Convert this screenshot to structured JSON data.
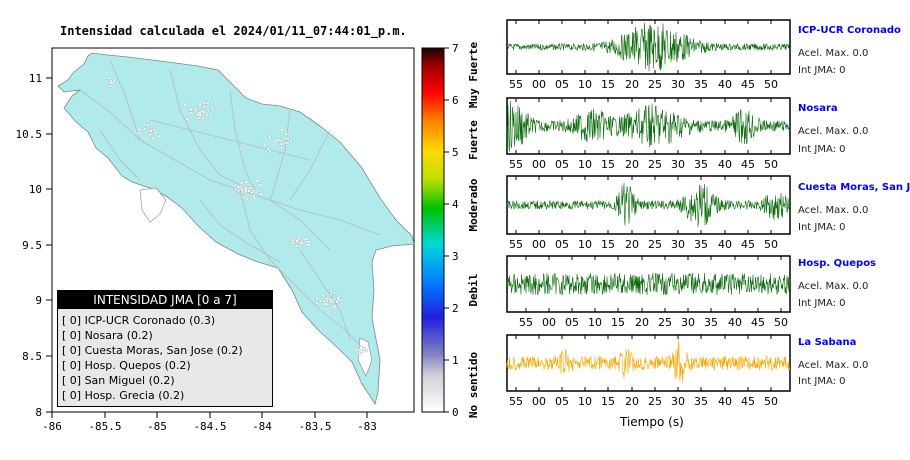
{
  "map": {
    "title": "Intensidad calculada el 2024/01/11_07:44:01_p.m.",
    "x_ticks": [
      "-86",
      "-85.5",
      "-85",
      "-84.5",
      "-84",
      "-83.5",
      "-83"
    ],
    "y_ticks": [
      "11",
      "10.5",
      "10",
      "9.5",
      "9",
      "8.5",
      "8"
    ],
    "land_color": "#b0eaea",
    "road_color": "#b8b8c0",
    "town_color": "#ffffff"
  },
  "legend": {
    "title": "INTENSIDAD JMA [0 a 7]",
    "items": [
      "[ 0] ICP-UCR Coronado (0.3)",
      "[ 0] Nosara (0.2)",
      "[ 0] Cuesta Moras, San Jose (0.2)",
      "[ 0] Hosp. Quepos (0.2)",
      "[ 0] San Miguel (0.2)",
      "[ 0] Hosp. Grecia (0.2)"
    ]
  },
  "scale": {
    "ticks": [
      "0",
      "1",
      "2",
      "3",
      "4",
      "5",
      "6",
      "7"
    ],
    "labels": [
      "No sentido",
      "Debil",
      "Moderado",
      "Fuerte",
      "Muy Fuerte"
    ]
  },
  "stations": [
    {
      "name": "ICP-UCR Coronado",
      "accel": "Acel. Max. 0.0",
      "jma": "Int JMA: 0",
      "color": "#0a6b0a",
      "ticks": [
        "55",
        "00",
        "05",
        "10",
        "15",
        "20",
        "25",
        "30",
        "35",
        "40",
        "45",
        "50"
      ]
    },
    {
      "name": "Nosara",
      "accel": "Acel. Max. 0.0",
      "jma": "Int JMA: 0",
      "color": "#0a6b0a",
      "ticks": [
        "55",
        "00",
        "05",
        "10",
        "15",
        "20",
        "25",
        "30",
        "35",
        "40",
        "45",
        "50"
      ]
    },
    {
      "name": "Cuesta Moras, San Jose",
      "accel": "Acel. Max. 0.0",
      "jma": "Int JMA: 0",
      "color": "#0a6b0a",
      "ticks": [
        "55",
        "00",
        "05",
        "10",
        "15",
        "20",
        "25",
        "30",
        "35",
        "40",
        "45",
        "50"
      ]
    },
    {
      "name": "Hosp. Quepos",
      "accel": "Acel. Max. 0.0",
      "jma": "Int JMA: 0",
      "color": "#0a6b0a",
      "ticks": [
        "55",
        "00",
        "05",
        "10",
        "15",
        "20",
        "25",
        "30",
        "35",
        "40",
        "45",
        "50"
      ]
    },
    {
      "name": "La Sabana",
      "accel": "Acel. Max. 0.0",
      "jma": "Int JMA: 0",
      "color": "#f5a800",
      "ticks": [
        "55",
        "00",
        "05",
        "10",
        "15",
        "20",
        "25",
        "30",
        "35",
        "40",
        "45",
        "50"
      ]
    }
  ],
  "time_axis_title": "Tiempo (s)"
}
